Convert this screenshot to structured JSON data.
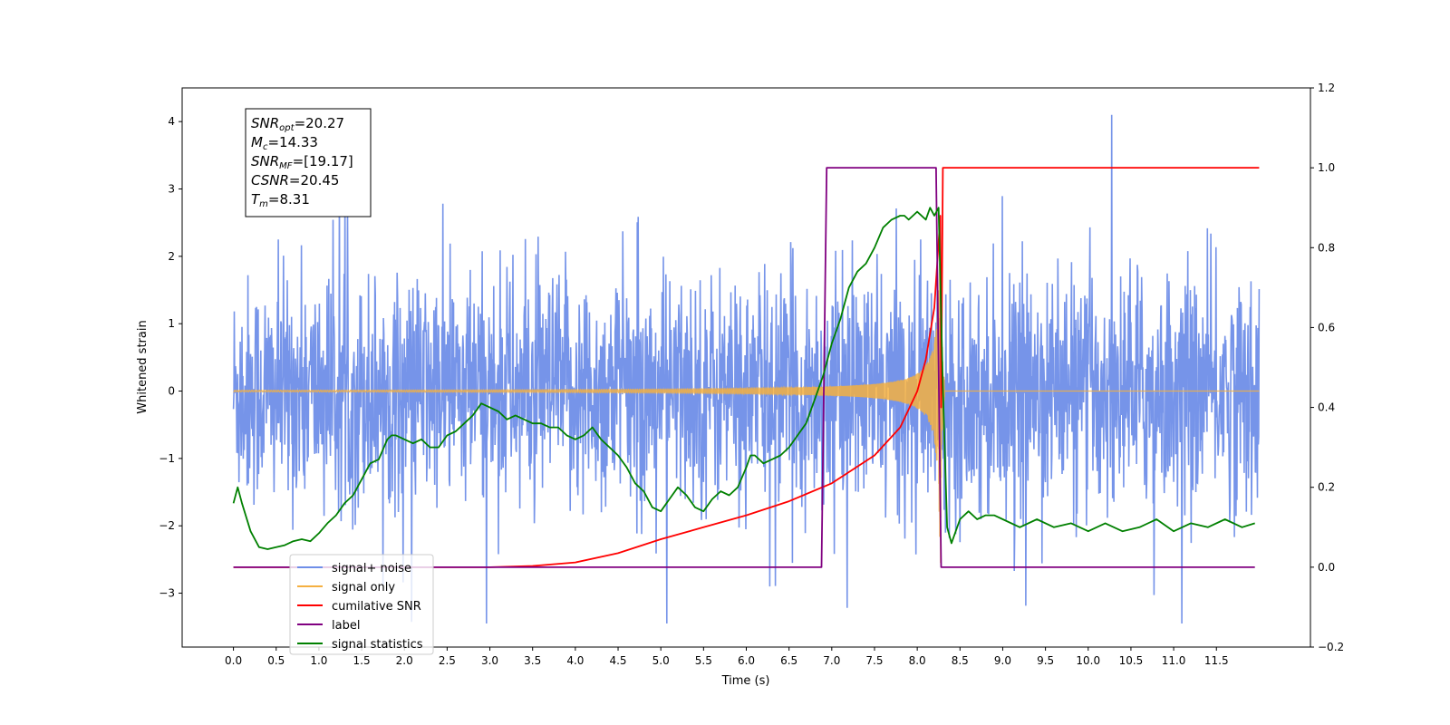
{
  "chart_data": {
    "type": "line",
    "xlabel": "Time (s)",
    "ylabel": "Whitened strain",
    "xlim": [
      -0.6,
      12.6
    ],
    "ylim": [
      -3.8,
      4.5
    ],
    "y2lim": [
      -0.2,
      1.2
    ],
    "x_ticks": [
      0.0,
      0.5,
      1.0,
      1.5,
      2.0,
      2.5,
      3.0,
      3.5,
      4.0,
      4.5,
      5.0,
      5.5,
      6.0,
      6.5,
      7.0,
      7.5,
      8.0,
      8.5,
      9.0,
      9.5,
      10.0,
      10.5,
      11.0,
      11.5
    ],
    "x_tick_labels": [
      "0.0",
      "0.5",
      "1.0",
      "1.5",
      "2.0",
      "2.5",
      "3.0",
      "3.5",
      "4.0",
      "4.5",
      "5.0",
      "5.5",
      "6.0",
      "6.5",
      "7.0",
      "7.5",
      "8.0",
      "8.5",
      "9.0",
      "9.5",
      "10.0",
      "10.5",
      "11.0",
      "11.5"
    ],
    "y_ticks": [
      -3,
      -2,
      -1,
      0,
      1,
      2,
      3,
      4
    ],
    "y_tick_labels": [
      "−3",
      "−2",
      "−1",
      "0",
      "1",
      "2",
      "3",
      "4"
    ],
    "y2_ticks": [
      -0.2,
      0.0,
      0.2,
      0.4,
      0.6,
      0.8,
      1.0,
      1.2
    ],
    "y2_tick_labels": [
      "−0.2",
      "0.0",
      "0.2",
      "0.4",
      "0.6",
      "0.8",
      "1.0",
      "1.2"
    ],
    "grid": false,
    "legend_position": "lower-left",
    "annotation": {
      "lines": [
        {
          "sym": "SNR",
          "sub": "opt",
          "value": "=20.27"
        },
        {
          "sym": "M",
          "sub": "c",
          "value": "=14.33"
        },
        {
          "sym": "SNR",
          "sub": "MF",
          "value": "=[19.17]"
        },
        {
          "sym": "CSNR",
          "sub": "",
          "value": "=20.45"
        },
        {
          "sym": "T",
          "sub": "m",
          "value": "=8.31"
        }
      ]
    },
    "series": [
      {
        "name": "signal+ noise",
        "color": "#6f8ee8",
        "axis": "left",
        "noise_sd": 0.85,
        "x_range": [
          0.0,
          12.0
        ]
      },
      {
        "name": "signal only",
        "color": "#f5b041",
        "axis": "left",
        "chirp_end": 8.27,
        "peak_amplitude": 2.9,
        "x_range": [
          0.0,
          12.0
        ]
      },
      {
        "name": "cumilative SNR",
        "color": "#ff0000",
        "axis": "right",
        "x": [
          0.0,
          3.0,
          3.5,
          4.0,
          4.5,
          5.0,
          5.5,
          6.0,
          6.5,
          7.0,
          7.5,
          7.8,
          8.0,
          8.1,
          8.2,
          8.27,
          8.28,
          8.3,
          12.0
        ],
        "y": [
          0.0,
          0.0,
          0.003,
          0.012,
          0.035,
          0.07,
          0.1,
          0.13,
          0.165,
          0.21,
          0.28,
          0.35,
          0.44,
          0.52,
          0.65,
          0.88,
          0.4,
          1.0,
          1.0
        ]
      },
      {
        "name": "label",
        "color": "#800080",
        "axis": "right",
        "x": [
          0.0,
          6.88,
          6.94,
          8.22,
          8.28,
          11.95
        ],
        "y": [
          0.0,
          0.0,
          1.0,
          1.0,
          0.0,
          0.0
        ]
      },
      {
        "name": "signal statistics",
        "color": "#008000",
        "axis": "right",
        "x": [
          0.0,
          0.05,
          0.1,
          0.2,
          0.3,
          0.4,
          0.5,
          0.6,
          0.7,
          0.8,
          0.9,
          1.0,
          1.1,
          1.2,
          1.3,
          1.4,
          1.5,
          1.6,
          1.7,
          1.8,
          1.85,
          1.9,
          2.0,
          2.1,
          2.2,
          2.3,
          2.4,
          2.5,
          2.6,
          2.7,
          2.8,
          2.9,
          3.0,
          3.1,
          3.2,
          3.3,
          3.4,
          3.5,
          3.6,
          3.7,
          3.8,
          3.9,
          4.0,
          4.1,
          4.2,
          4.3,
          4.4,
          4.5,
          4.6,
          4.7,
          4.8,
          4.9,
          5.0,
          5.1,
          5.2,
          5.3,
          5.4,
          5.5,
          5.6,
          5.7,
          5.8,
          5.9,
          6.0,
          6.05,
          6.1,
          6.2,
          6.3,
          6.4,
          6.5,
          6.6,
          6.7,
          6.8,
          6.9,
          7.0,
          7.1,
          7.2,
          7.3,
          7.4,
          7.5,
          7.6,
          7.7,
          7.8,
          7.85,
          7.9,
          8.0,
          8.1,
          8.15,
          8.2,
          8.25,
          8.3,
          8.35,
          8.4,
          8.5,
          8.6,
          8.7,
          8.8,
          8.9,
          9.0,
          9.2,
          9.4,
          9.6,
          9.8,
          10.0,
          10.2,
          10.4,
          10.6,
          10.8,
          11.0,
          11.2,
          11.4,
          11.6,
          11.8,
          11.95
        ],
        "y": [
          0.16,
          0.2,
          0.16,
          0.09,
          0.05,
          0.045,
          0.05,
          0.055,
          0.065,
          0.07,
          0.065,
          0.085,
          0.11,
          0.13,
          0.16,
          0.18,
          0.22,
          0.26,
          0.27,
          0.32,
          0.33,
          0.33,
          0.32,
          0.31,
          0.32,
          0.3,
          0.3,
          0.33,
          0.34,
          0.36,
          0.38,
          0.41,
          0.4,
          0.39,
          0.37,
          0.38,
          0.37,
          0.36,
          0.36,
          0.35,
          0.35,
          0.33,
          0.32,
          0.33,
          0.35,
          0.32,
          0.3,
          0.28,
          0.25,
          0.21,
          0.19,
          0.15,
          0.14,
          0.17,
          0.2,
          0.18,
          0.15,
          0.14,
          0.17,
          0.19,
          0.18,
          0.2,
          0.25,
          0.28,
          0.28,
          0.26,
          0.27,
          0.28,
          0.3,
          0.33,
          0.36,
          0.42,
          0.48,
          0.56,
          0.62,
          0.7,
          0.74,
          0.76,
          0.8,
          0.85,
          0.87,
          0.88,
          0.88,
          0.87,
          0.89,
          0.87,
          0.9,
          0.88,
          0.9,
          0.45,
          0.1,
          0.06,
          0.12,
          0.14,
          0.12,
          0.13,
          0.13,
          0.12,
          0.1,
          0.12,
          0.1,
          0.11,
          0.09,
          0.11,
          0.09,
          0.1,
          0.12,
          0.09,
          0.11,
          0.1,
          0.12,
          0.1,
          0.11
        ]
      }
    ],
    "legend": [
      {
        "label": "signal+ noise",
        "color": "#6f8ee8"
      },
      {
        "label": "signal only",
        "color": "#f5b041"
      },
      {
        "label": "cumilative SNR",
        "color": "#ff0000"
      },
      {
        "label": "label",
        "color": "#800080"
      },
      {
        "label": "signal statistics",
        "color": "#008000"
      }
    ]
  }
}
